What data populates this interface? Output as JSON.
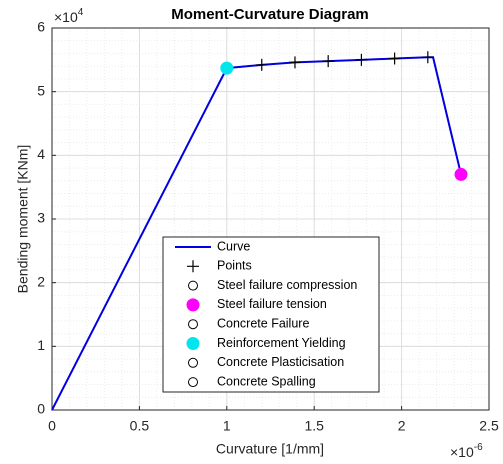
{
  "chart_data": {
    "type": "line",
    "title": "Moment-Curvature Diagram",
    "x_label": "Curvature [1/mm]",
    "y_label": "Bending moment [KNm]",
    "x_multiplier": {
      "base": "×10",
      "exponent": "-6"
    },
    "y_multiplier": {
      "base": "×10",
      "exponent": "4"
    },
    "xlim": [
      0,
      2.5
    ],
    "ylim": [
      0,
      6
    ],
    "xticks": [
      0,
      0.5,
      1,
      1.5,
      2,
      2.5
    ],
    "yticks": [
      0,
      1,
      2,
      3,
      4,
      5,
      6
    ],
    "grid": true,
    "minor_grid": true,
    "legend": "bottom-center",
    "series": [
      {
        "name": "Curve",
        "color": "#0000e0",
        "marker": "line",
        "x": [
          0,
          1.0,
          1.2,
          1.39,
          1.58,
          1.77,
          1.96,
          2.15,
          2.18,
          2.34
        ],
        "values": [
          0,
          5.37,
          5.42,
          5.46,
          5.48,
          5.5,
          5.52,
          5.54,
          5.54,
          3.7
        ]
      },
      {
        "name": "Points",
        "color": "#000000",
        "marker": "plus",
        "x": [
          1.2,
          1.39,
          1.58,
          1.77,
          1.96,
          2.15
        ],
        "values": [
          5.42,
          5.46,
          5.48,
          5.5,
          5.52,
          5.54
        ]
      },
      {
        "name": "Steel failure compression",
        "color": "#000000",
        "marker": "open-circle",
        "x": [],
        "values": []
      },
      {
        "name": "Steel failure tension",
        "color": "#ff00ff",
        "marker": "dot",
        "x": [
          2.34
        ],
        "values": [
          3.7
        ]
      },
      {
        "name": "Concrete Failure",
        "color": "#000000",
        "marker": "open-circle",
        "x": [],
        "values": []
      },
      {
        "name": "Reinforcement Yielding",
        "color": "#00e5ee",
        "marker": "dot",
        "x": [
          1.0
        ],
        "values": [
          5.37
        ]
      },
      {
        "name": "Concrete Plasticisation",
        "color": "#000000",
        "marker": "open-circle",
        "x": [],
        "values": []
      },
      {
        "name": "Concrete Spalling",
        "color": "#000000",
        "marker": "open-circle",
        "x": [],
        "values": []
      }
    ]
  }
}
